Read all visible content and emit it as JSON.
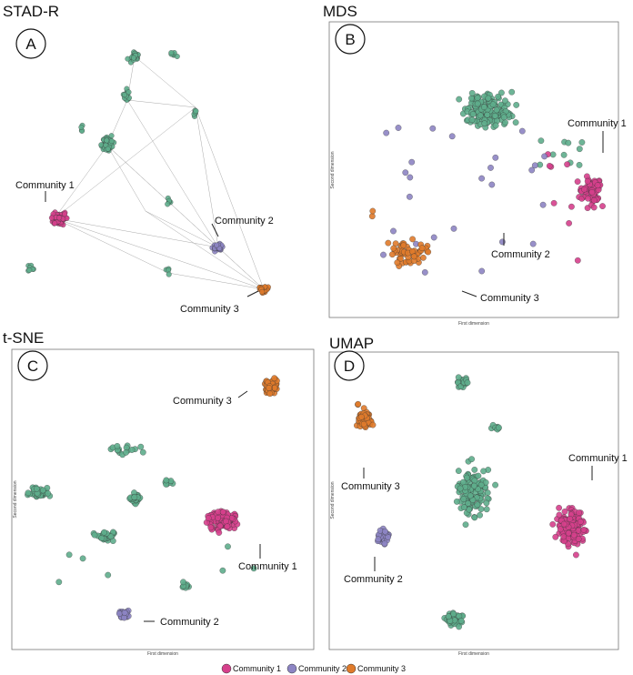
{
  "colors": {
    "community1": "#d6408c",
    "community2": "#8d85c4",
    "community3": "#e07b2b",
    "other": "#5fae8c"
  },
  "legend": [
    {
      "label": "Community 1",
      "key": "community1"
    },
    {
      "label": "Community 2",
      "key": "community2"
    },
    {
      "label": "Community 3",
      "key": "community3"
    }
  ],
  "chart_data": [
    {
      "panel": "A",
      "title": "STAD-R",
      "type": "scatter",
      "annotations": [
        "Community 1",
        "Community 2",
        "Community 3"
      ],
      "xlabel": "",
      "ylabel": ""
    },
    {
      "panel": "B",
      "title": "MDS",
      "type": "scatter",
      "annotations": [
        "Community 1",
        "Community 2",
        "Community 3"
      ],
      "xlabel": "First dimension",
      "ylabel": "Second dimension"
    },
    {
      "panel": "C",
      "title": "t-SNE",
      "type": "scatter",
      "annotations": [
        "Community 3",
        "Community 1",
        "Community 2"
      ],
      "xlabel": "First dimension",
      "ylabel": "Second dimension"
    },
    {
      "panel": "D",
      "title": "UMAP",
      "type": "scatter",
      "annotations": [
        "Community 1",
        "Community 3",
        "Community 2"
      ],
      "xlabel": "First dimension",
      "ylabel": "Second dimension"
    }
  ]
}
